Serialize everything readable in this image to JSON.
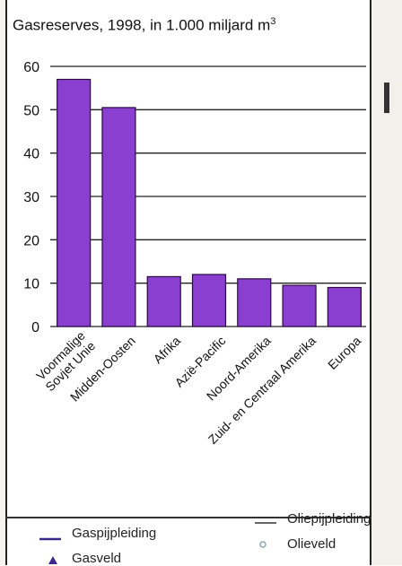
{
  "title_main": "Gasreserves, 1998, in 1.000 miljard m",
  "title_exp": "3",
  "chart_data": {
    "type": "bar",
    "categories": [
      "Voormalige Sovjet Unie",
      "Midden-Oosten",
      "Afrika",
      "Azië-Pacific",
      "Noord-Amerika",
      "Zuid- en Centraal Amerika",
      "Europa"
    ],
    "category_lines": [
      [
        "Voormalige",
        "Sovjet Unie"
      ],
      [
        "Midden-Oosten"
      ],
      [
        "Afrika"
      ],
      [
        "Azië-Pacific"
      ],
      [
        "Noord-Amerika"
      ],
      [
        "Zuid- en Centraal Amerika"
      ],
      [
        "Europa"
      ]
    ],
    "values": [
      57,
      50.5,
      11.5,
      12,
      11,
      9.5,
      9
    ],
    "ylim": [
      0,
      60
    ],
    "yticks": [
      0,
      10,
      20,
      30,
      40,
      50,
      60
    ],
    "grid": true,
    "bar_color": "#8a3fd1",
    "bar_edge": "#2a0a40"
  },
  "legend": {
    "gas_pipeline": "Gaspijpleiding",
    "gas_field": "Gasveld",
    "oil_pipeline": "Oliepijpleiding",
    "oil_field": "Olieveld",
    "gas_color": "#3b2a8a",
    "oil_color": "#8aa8b0"
  }
}
